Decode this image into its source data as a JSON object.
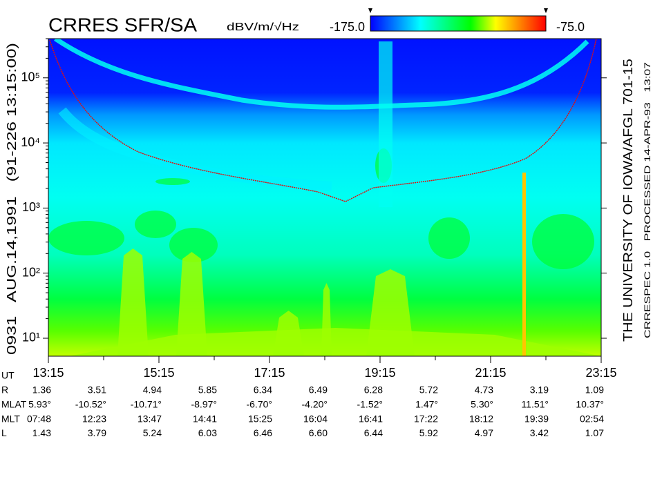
{
  "chart_data": {
    "type": "spectrogram",
    "title": "CRRES SFR/SA",
    "colorbar_label": "dBV/m/√Hz",
    "clim": [
      -175,
      -75
    ],
    "colorbar_ticks": [
      {
        "value": -175,
        "label": "-175.0"
      },
      {
        "value": -75,
        "label": "-75.0"
      }
    ],
    "colormap": [
      "#0000ff",
      "#0080ff",
      "#00ffff",
      "#00ff80",
      "#00ff00",
      "#ffff00",
      "#ff8000",
      "#ff0000"
    ],
    "ylabel": "0931   AUG.14,1991   (91-226 13:15:00)",
    "right_label": "THE UNIVERSITY OF IOWA/AFGL 701-15",
    "right_sublabel": "CRRESPEC 1.0   PROCESSED 14-APR-93   13:07",
    "log_y": true,
    "ylim": [
      5.3,
      400000
    ],
    "yticks": [
      {
        "value": 10,
        "label": "10¹"
      },
      {
        "value": 100,
        "label": "10²"
      },
      {
        "value": 1000,
        "label": "10³"
      },
      {
        "value": 10000,
        "label": "10⁴"
      },
      {
        "value": 100000,
        "label": "10⁵"
      }
    ],
    "xlabel": "UT",
    "xlim": [
      13.25,
      23.25
    ],
    "xticks": [
      {
        "value": 13.25,
        "label": "13:15"
      },
      {
        "value": 15.25,
        "label": "15:15"
      },
      {
        "value": 17.25,
        "label": "17:15"
      },
      {
        "value": 19.25,
        "label": "19:15"
      },
      {
        "value": 21.25,
        "label": "21:15"
      },
      {
        "value": 23.25,
        "label": "23:15"
      }
    ],
    "x_minor_ticks": [
      14.25,
      16.25,
      18.25,
      20.25,
      22.25
    ],
    "ephemeris": [
      {
        "label": "R",
        "values": [
          "1.36",
          "3.51",
          "4.94",
          "5.85",
          "6.34",
          "6.49",
          "6.28",
          "5.72",
          "4.73",
          "3.19",
          "1.09"
        ]
      },
      {
        "label": "MLAT",
        "values": [
          "5.93°",
          "-10.52°",
          "-10.71°",
          "-8.97°",
          "-6.70°",
          "-4.20°",
          "-1.52°",
          "1.47°",
          "5.30°",
          "11.51°",
          "10.37°"
        ]
      },
      {
        "label": "MLT",
        "values": [
          "07:48",
          "12:23",
          "13:47",
          "14:41",
          "15:25",
          "16:04",
          "16:41",
          "17:22",
          "18:12",
          "19:39",
          "02:54"
        ]
      },
      {
        "label": "L",
        "values": [
          "1.43",
          "3.79",
          "5.24",
          "6.03",
          "6.46",
          "6.60",
          "6.44",
          "5.92",
          "4.97",
          "3.42",
          "1.07"
        ]
      }
    ]
  }
}
